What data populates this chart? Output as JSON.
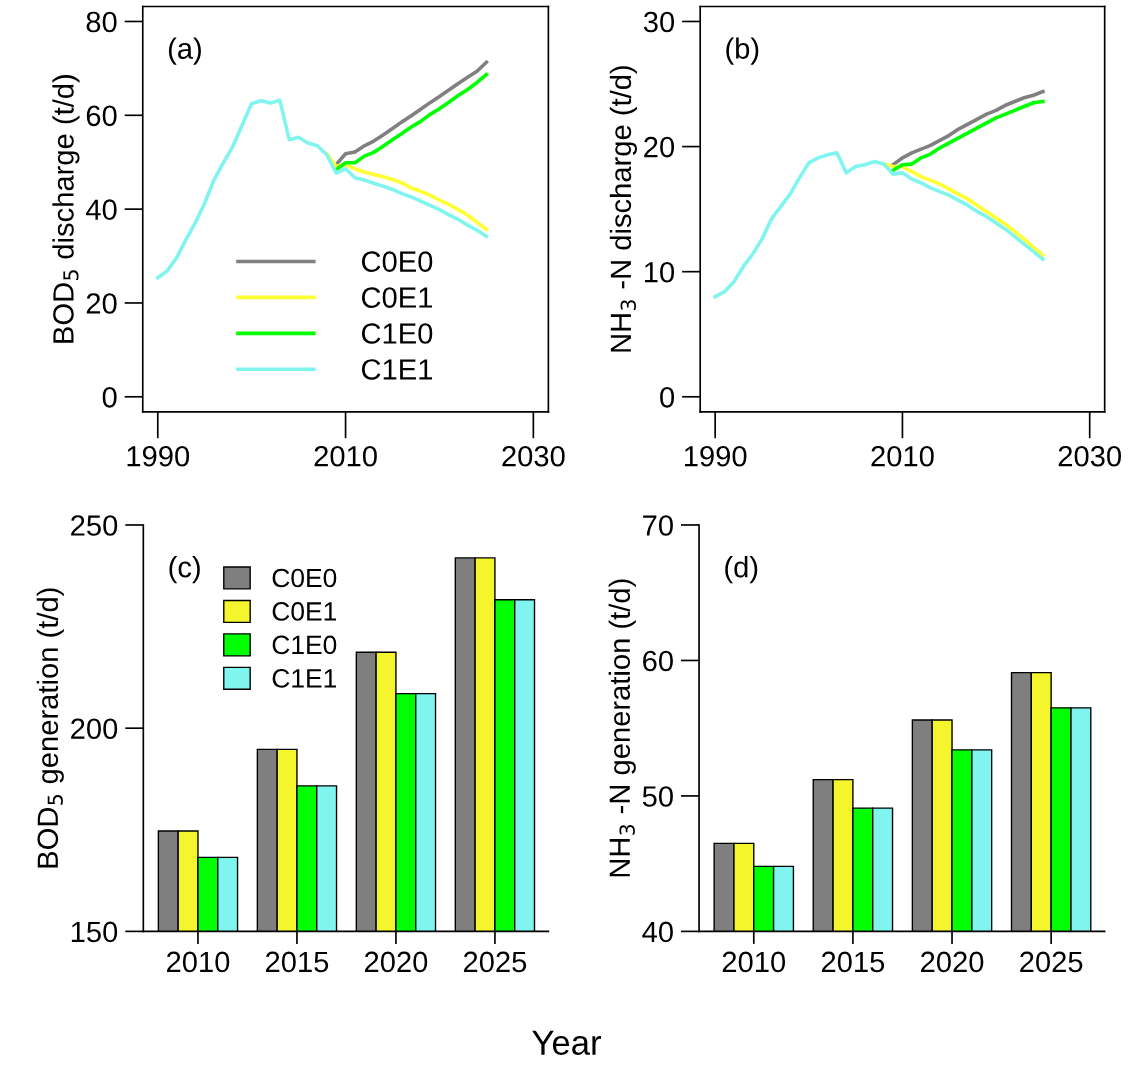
{
  "chart_data": [
    {
      "type": "line",
      "ylabel": "BOD$_{5}$ discharge (t/d)",
      "annotations": [
        "(a)"
      ],
      "legend": "bottom left",
      "xlim": [
        1988.4,
        2031.6
      ],
      "xticks": [
        1990,
        2010,
        2030
      ],
      "ylim": [
        -3.2,
        83.2
      ],
      "yticks": [
        0,
        20,
        40,
        60,
        80
      ],
      "grid": false,
      "marker": "none",
      "line_style": "solid",
      "series": [
        {
          "name": "C0E0",
          "color": "#808080",
          "x": [
            2009,
            2010,
            2011,
            2012,
            2013,
            2014,
            2015,
            2016,
            2017,
            2018,
            2019,
            2020,
            2021,
            2022,
            2023,
            2024,
            2025
          ],
          "values": [
            49.5,
            51.8,
            52.2,
            53.5,
            54.5,
            55.8,
            57.2,
            58.6,
            59.9,
            61.3,
            62.7,
            64.0,
            65.4,
            66.8,
            68.1,
            69.4,
            71.3
          ]
        },
        {
          "name": "C0E1",
          "color": "#ffff33",
          "x": [
            2008,
            2009,
            2010,
            2011,
            2012,
            2013,
            2014,
            2015,
            2016,
            2017,
            2018,
            2019,
            2020,
            2021,
            2022,
            2023,
            2024,
            2025
          ],
          "values": [
            51.8,
            49.1,
            49.5,
            48.6,
            47.9,
            47.4,
            46.9,
            46.3,
            45.6,
            44.5,
            43.8,
            43.0,
            41.9,
            41.0,
            39.9,
            38.7,
            37.2,
            35.7
          ]
        },
        {
          "name": "C1E0",
          "color": "#00ff00",
          "x": [
            2009,
            2010,
            2011,
            2012,
            2013,
            2014,
            2015,
            2016,
            2017,
            2018,
            2019,
            2020,
            2021,
            2022,
            2023,
            2024,
            2025
          ],
          "values": [
            48.4,
            49.9,
            49.9,
            51.3,
            52.1,
            53.4,
            54.8,
            56.1,
            57.5,
            58.7,
            60.2,
            61.4,
            62.8,
            64.2,
            65.5,
            67.0,
            68.7
          ]
        },
        {
          "name": "C1E1",
          "color": "#80f5f0",
          "x": [
            1990,
            1991,
            1992,
            1993,
            1994,
            1995,
            1996,
            1997,
            1998,
            1999,
            2000,
            2001,
            2002,
            2003,
            2004,
            2005,
            2006,
            2007,
            2008,
            2009,
            2010,
            2011,
            2012,
            2013,
            2014,
            2015,
            2016,
            2017,
            2018,
            2019,
            2020,
            2021,
            2022,
            2023,
            2024,
            2025
          ],
          "values": [
            25.4,
            26.8,
            29.6,
            33.5,
            37.1,
            41.3,
            46.3,
            49.9,
            53.4,
            58.0,
            62.5,
            63.1,
            62.6,
            63.2,
            54.8,
            55.3,
            54.1,
            53.5,
            51.6,
            47.7,
            48.6,
            46.7,
            46.2,
            45.5,
            44.9,
            44.2,
            43.3,
            42.6,
            41.7,
            40.8,
            39.9,
            38.8,
            37.8,
            36.6,
            35.5,
            34.2
          ]
        }
      ]
    },
    {
      "type": "line",
      "ylabel": "NH$_{3}$ -N discharge (t/d)",
      "annotations": [
        "(b)"
      ],
      "xlim": [
        1988.4,
        2031.6
      ],
      "xticks": [
        1990,
        2010,
        2030
      ],
      "ylim": [
        -1.2,
        31.2
      ],
      "yticks": [
        0,
        10,
        20,
        30
      ],
      "grid": false,
      "marker": "none",
      "line_style": "solid",
      "series": [
        {
          "color": "#808080",
          "x": [
            2009,
            2010,
            2011,
            2012,
            2013,
            2014,
            2015,
            2016,
            2017,
            2018,
            2019,
            2020,
            2021,
            2022,
            2023,
            2024,
            2025
          ],
          "values": [
            18.55,
            19.1,
            19.5,
            19.8,
            20.1,
            20.5,
            20.9,
            21.4,
            21.8,
            22.2,
            22.6,
            22.9,
            23.3,
            23.6,
            23.9,
            24.1,
            24.4
          ]
        },
        {
          "color": "#ffff33",
          "x": [
            2008,
            2009,
            2010,
            2011,
            2012,
            2013,
            2014,
            2015,
            2016,
            2017,
            2018,
            2019,
            2020,
            2021,
            2022,
            2023,
            2024,
            2025
          ],
          "values": [
            18.6,
            18.4,
            18.4,
            18.0,
            17.6,
            17.3,
            17.0,
            16.6,
            16.2,
            15.8,
            15.3,
            14.8,
            14.3,
            13.8,
            13.2,
            12.6,
            11.95,
            11.3
          ]
        },
        {
          "color": "#00ff00",
          "x": [
            2009,
            2010,
            2011,
            2012,
            2013,
            2014,
            2015,
            2016,
            2017,
            2018,
            2019,
            2020,
            2021,
            2022,
            2023,
            2024,
            2025
          ],
          "values": [
            18.1,
            18.55,
            18.6,
            19.1,
            19.4,
            19.9,
            20.3,
            20.7,
            21.1,
            21.5,
            21.9,
            22.3,
            22.6,
            22.9,
            23.2,
            23.5,
            23.6
          ]
        },
        {
          "color": "#80f5f0",
          "x": [
            1990,
            1991,
            1992,
            1993,
            1994,
            1995,
            1996,
            1997,
            1998,
            1999,
            2000,
            2001,
            2002,
            2003,
            2004,
            2005,
            2006,
            2007,
            2008,
            2009,
            2010,
            2011,
            2012,
            2013,
            2014,
            2015,
            2016,
            2017,
            2018,
            2019,
            2020,
            2021,
            2022,
            2023,
            2024,
            2025
          ],
          "values": [
            8.0,
            8.4,
            9.2,
            10.4,
            11.4,
            12.6,
            14.2,
            15.2,
            16.2,
            17.5,
            18.7,
            19.1,
            19.35,
            19.5,
            17.9,
            18.4,
            18.55,
            18.8,
            18.6,
            17.8,
            17.9,
            17.4,
            17.1,
            16.7,
            16.4,
            16.1,
            15.7,
            15.3,
            14.8,
            14.4,
            13.9,
            13.4,
            12.8,
            12.2,
            11.6,
            11.0
          ]
        }
      ]
    },
    {
      "type": "bar",
      "ylabel": "BOD$_{5}$ generation (t/d)",
      "xlabel": "Year",
      "annotations": [
        "(c)"
      ],
      "legend": "top left",
      "categories": [
        "2010",
        "2015",
        "2020",
        "2025"
      ],
      "ylim": [
        150,
        250
      ],
      "yticks": [
        150,
        200,
        250
      ],
      "grid": false,
      "series": [
        {
          "name": "C0E0",
          "color": "#7f7f7f",
          "values": [
            174.7,
            194.8,
            218.7,
            241.9
          ]
        },
        {
          "name": "C0E1",
          "color": "#f5f52d",
          "values": [
            174.7,
            194.8,
            218.7,
            241.9
          ]
        },
        {
          "name": "C1E0",
          "color": "#00ff00",
          "values": [
            168.2,
            185.8,
            208.5,
            231.6
          ]
        },
        {
          "name": "C1E1",
          "color": "#80f5f0",
          "values": [
            168.2,
            185.8,
            208.5,
            231.6
          ]
        }
      ]
    },
    {
      "type": "bar",
      "ylabel": "NH$_{3}$ -N generation (t/d)",
      "annotations": [
        "(d)"
      ],
      "categories": [
        "2010",
        "2015",
        "2020",
        "2025"
      ],
      "ylim": [
        40,
        70
      ],
      "yticks": [
        40,
        50,
        60,
        70
      ],
      "grid": false,
      "series": [
        {
          "color": "#7f7f7f",
          "values": [
            46.5,
            51.2,
            55.6,
            59.1
          ]
        },
        {
          "color": "#f5f52d",
          "values": [
            46.5,
            51.2,
            55.6,
            59.1
          ]
        },
        {
          "color": "#00ff00",
          "values": [
            44.8,
            49.1,
            53.4,
            56.5
          ]
        },
        {
          "color": "#80f5f0",
          "values": [
            44.8,
            49.1,
            53.4,
            56.5
          ]
        }
      ]
    }
  ]
}
